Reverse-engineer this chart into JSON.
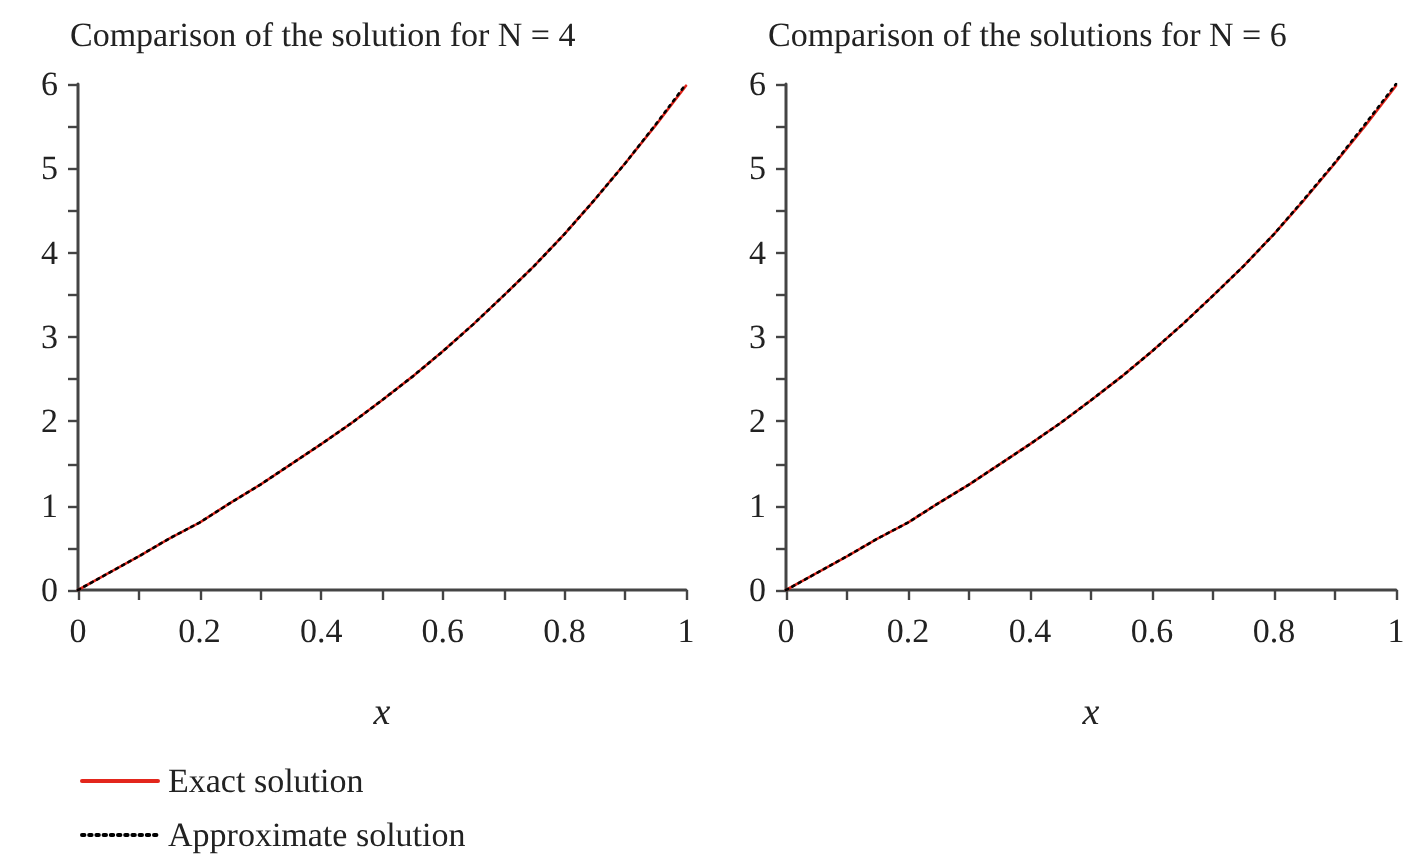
{
  "chart_data": [
    {
      "type": "line",
      "title": "Comparison of the solution for N = 4",
      "xlabel": "x",
      "x": [
        0,
        0.05,
        0.1,
        0.15,
        0.2,
        0.25,
        0.3,
        0.35,
        0.4,
        0.45,
        0.5,
        0.55,
        0.6,
        0.65,
        0.7,
        0.75,
        0.8,
        0.85,
        0.9,
        0.95,
        1
      ],
      "series": [
        {
          "name": "Exact solution",
          "color": "#e3261c",
          "line_style": "solid",
          "values": [
            0,
            0.2,
            0.4,
            0.61,
            0.8,
            1.03,
            1.25,
            1.49,
            1.73,
            1.98,
            2.25,
            2.53,
            2.83,
            3.15,
            3.49,
            3.84,
            4.22,
            4.63,
            5.06,
            5.51,
            5.98
          ]
        },
        {
          "name": "Approximate solution",
          "color": "#000000",
          "line_style": "dotted",
          "values": [
            0,
            0.2,
            0.4,
            0.61,
            0.8,
            1.03,
            1.25,
            1.49,
            1.73,
            1.98,
            2.25,
            2.53,
            2.83,
            3.15,
            3.49,
            3.84,
            4.22,
            4.63,
            5.06,
            5.52,
            6.0
          ]
        }
      ],
      "xlim": [
        0,
        1
      ],
      "ylim": [
        0,
        6
      ],
      "xticks": [
        0,
        {
          "value": 0.1,
          "label": null
        },
        0.2,
        {
          "value": 0.3,
          "label": null
        },
        0.4,
        {
          "value": 0.5,
          "label": null
        },
        0.6,
        {
          "value": 0.7,
          "label": null
        },
        0.8,
        {
          "value": 0.9,
          "label": null
        },
        1
      ],
      "yticks": [
        0,
        {
          "value": 0.5,
          "label": null
        },
        1,
        {
          "value": 1.5,
          "label": null
        },
        2,
        {
          "value": 2.5,
          "label": null
        },
        3,
        {
          "value": 3.5,
          "label": null
        },
        4,
        {
          "value": 4.5,
          "label": null
        },
        5,
        {
          "value": 5.5,
          "label": null
        },
        6
      ],
      "legend": "bottom left",
      "marker": "none"
    },
    {
      "type": "line",
      "title": "Comparison of the solutions for N = 6",
      "xlabel": "x",
      "x": [
        0,
        0.05,
        0.1,
        0.15,
        0.2,
        0.25,
        0.3,
        0.35,
        0.4,
        0.45,
        0.5,
        0.55,
        0.6,
        0.65,
        0.7,
        0.75,
        0.8,
        0.85,
        0.9,
        0.95,
        1
      ],
      "series": [
        {
          "color": "#e3261c",
          "line_style": "solid",
          "values": [
            0,
            0.2,
            0.4,
            0.61,
            0.8,
            1.03,
            1.25,
            1.49,
            1.73,
            1.98,
            2.25,
            2.53,
            2.83,
            3.15,
            3.49,
            3.84,
            4.22,
            4.63,
            5.06,
            5.51,
            5.98
          ]
        },
        {
          "color": "#000000",
          "line_style": "dotted",
          "values": [
            0,
            0.2,
            0.4,
            0.61,
            0.8,
            1.03,
            1.25,
            1.49,
            1.73,
            1.98,
            2.25,
            2.53,
            2.83,
            3.15,
            3.49,
            3.84,
            4.22,
            4.64,
            5.07,
            5.53,
            6.0
          ]
        }
      ],
      "xlim": [
        0,
        1
      ],
      "ylim": [
        0,
        6
      ],
      "xticks": [
        0,
        {
          "value": 0.1,
          "label": null
        },
        0.2,
        {
          "value": 0.3,
          "label": null
        },
        0.4,
        {
          "value": 0.5,
          "label": null
        },
        0.6,
        {
          "value": 0.7,
          "label": null
        },
        0.8,
        {
          "value": 0.9,
          "label": null
        },
        1
      ],
      "yticks": [
        0,
        {
          "value": 0.5,
          "label": null
        },
        1,
        {
          "value": 1.5,
          "label": null
        },
        2,
        {
          "value": 2.5,
          "label": null
        },
        3,
        {
          "value": 3.5,
          "label": null
        },
        4,
        {
          "value": 4.5,
          "label": null
        },
        5,
        {
          "value": 5.5,
          "label": null
        },
        6
      ],
      "marker": "none"
    }
  ]
}
